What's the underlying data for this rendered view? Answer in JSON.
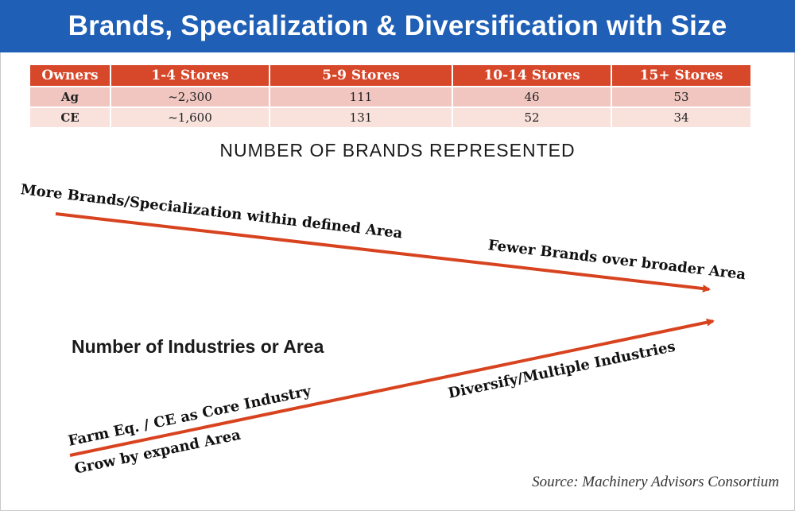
{
  "title": "Brands, Specialization & Diversification with Size",
  "table": {
    "headers": [
      "Owners",
      "1-4 Stores",
      "5-9 Stores",
      "10-14 Stores",
      "15+ Stores"
    ],
    "rows": [
      {
        "owner": "Ag",
        "values": [
          "~2,300",
          "111",
          "46",
          "53"
        ]
      },
      {
        "owner": "CE",
        "values": [
          "~1,600",
          "131",
          "52",
          "34"
        ]
      }
    ]
  },
  "brands_heading": "NUMBER OF BRANDS REPRESENTED",
  "brands_arrow": {
    "start_label": "More Brands/Specialization within defined Area",
    "end_label": "Fewer Brands over broader Area"
  },
  "industries_heading": "Number of Industries or Area",
  "industries_arrow": {
    "start_label_1": "Farm Eq. / CE as Core Industry",
    "start_label_2": "Grow by expand Area",
    "end_label": "Diversify/Multiple Industries"
  },
  "source": "Source: Machinery Advisors Consortium",
  "colors": {
    "banner": "#1f5fb5",
    "header_cells": "#d7472a",
    "row_ag": "#f1c6c0",
    "row_ce": "#f9e1dc",
    "arrow": "#d8431f"
  }
}
